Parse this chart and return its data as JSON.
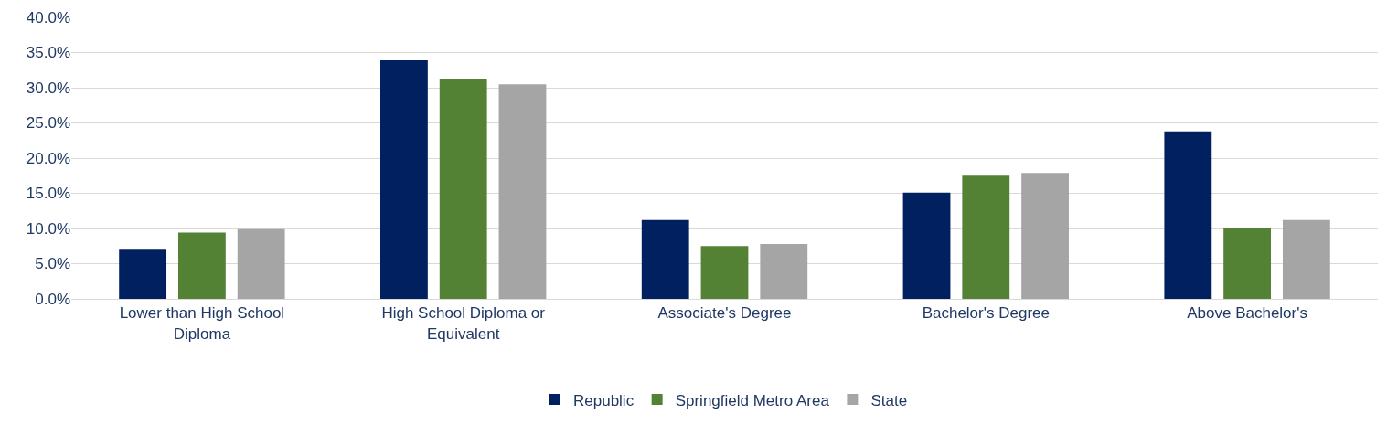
{
  "chart_data": {
    "type": "bar",
    "categories": [
      "Lower than High School Diploma",
      "High School Diploma or Equivalent",
      "Associate's Degree",
      "Bachelor's Degree",
      "Above Bachelor's"
    ],
    "series": [
      {
        "name": "Republic",
        "color": "#002060",
        "values": [
          7.1,
          33.9,
          11.2,
          15.1,
          23.8
        ]
      },
      {
        "name": "Springfield Metro Area",
        "color": "#548235",
        "values": [
          9.4,
          31.3,
          7.5,
          17.5,
          10.0
        ]
      },
      {
        "name": "State",
        "color": "#a5a5a5",
        "values": [
          9.9,
          30.5,
          7.8,
          17.9,
          11.2
        ]
      }
    ],
    "ylim": [
      0,
      40
    ],
    "yticks": [
      {
        "value": 0,
        "label": "0.0%"
      },
      {
        "value": 5,
        "label": "5.0%"
      },
      {
        "value": 10,
        "label": "10.0%"
      },
      {
        "value": 15,
        "label": "15.0%"
      },
      {
        "value": 20,
        "label": "20.0%"
      },
      {
        "value": 25,
        "label": "25.0%"
      },
      {
        "value": 30,
        "label": "30.0%"
      },
      {
        "value": 35,
        "label": "35.0%"
      },
      {
        "value": 40,
        "label": "40.0%"
      }
    ],
    "grid": "y",
    "legend": "bottom"
  }
}
